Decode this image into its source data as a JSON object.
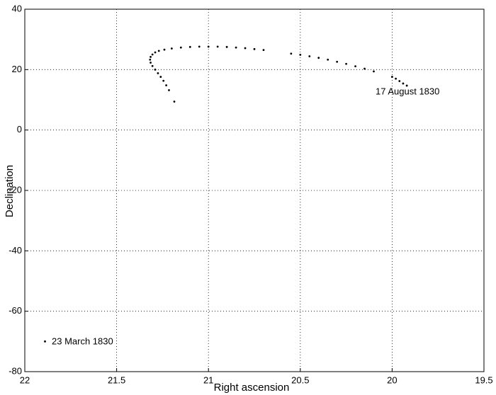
{
  "chart_data": {
    "type": "scatter",
    "xlabel": "Right ascension",
    "ylabel": "Declination",
    "annotations": [
      "17 August 1830",
      "23 March 1830"
    ],
    "color": "#000000",
    "grid": true,
    "x_reversed": true,
    "xlim": [
      22,
      19.5
    ],
    "ylim": [
      -80,
      40
    ],
    "xticks": [
      22,
      21.5,
      21,
      20.5,
      20,
      19.5
    ],
    "yticks": [
      -80,
      -60,
      -40,
      -20,
      0,
      20,
      40
    ],
    "x": [
      21.89,
      21.186,
      21.215,
      21.23,
      21.245,
      21.26,
      21.275,
      21.29,
      21.305,
      21.315,
      21.318,
      21.315,
      21.305,
      21.29,
      21.27,
      21.24,
      21.2,
      21.15,
      21.1,
      21.05,
      21.0,
      20.95,
      20.9,
      20.85,
      20.8,
      20.75,
      20.7,
      20.55,
      20.5,
      20.45,
      20.4,
      20.35,
      20.3,
      20.25,
      20.2,
      20.15,
      20.1,
      20.0,
      19.98,
      19.96,
      19.94,
      19.92
    ],
    "values": [
      -70,
      9.4,
      13.2,
      14.8,
      16.3,
      17.6,
      18.8,
      20.0,
      21.2,
      22.3,
      23.3,
      24.2,
      25.0,
      25.7,
      26.2,
      26.6,
      27.0,
      27.3,
      27.5,
      27.6,
      27.6,
      27.6,
      27.5,
      27.3,
      27.1,
      26.8,
      26.5,
      25.3,
      24.9,
      24.4,
      23.9,
      23.3,
      22.6,
      21.9,
      21.1,
      20.3,
      19.4,
      17.6,
      17.0,
      16.2,
      15.4,
      14.7
    ]
  }
}
